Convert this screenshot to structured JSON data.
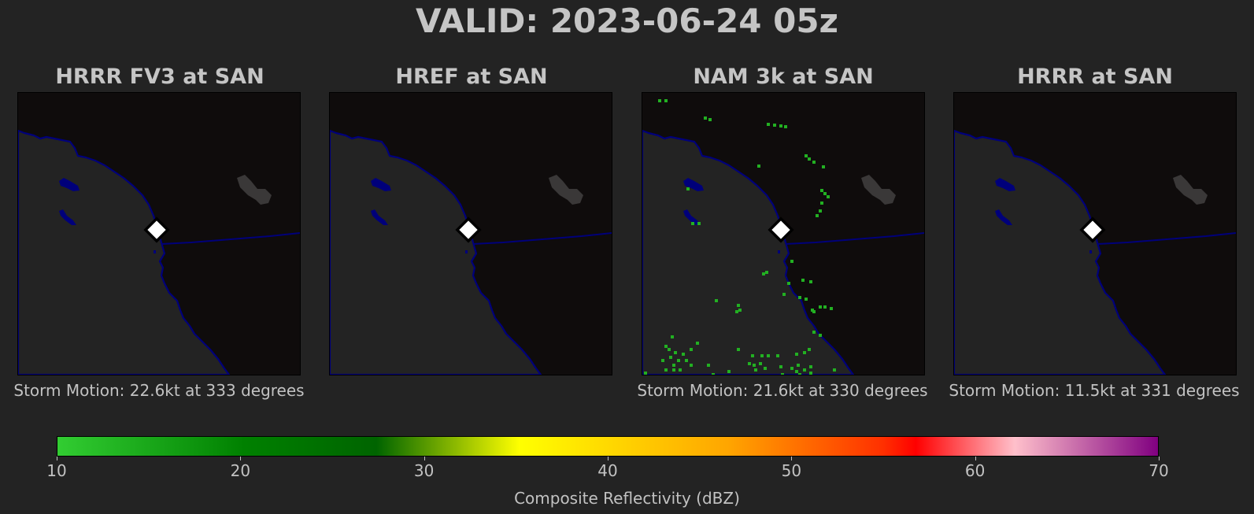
{
  "title": "VALID: 2023-06-24 05z",
  "panels": [
    {
      "title": "HRRR FV3 at SAN",
      "storm_motion": "Storm Motion: 22.6kt at 333 degrees"
    },
    {
      "title": "HREF at SAN",
      "storm_motion": ""
    },
    {
      "title": "NAM 3k at SAN",
      "storm_motion": "Storm Motion: 21.6kt at 330 degrees"
    },
    {
      "title": "HRRR at SAN",
      "storm_motion": "Storm Motion: 11.5kt at 331 degrees"
    }
  ],
  "colorbar": {
    "label": "Composite Reflectivity (dBZ)",
    "ticks": [
      "10",
      "20",
      "30",
      "40",
      "50",
      "60",
      "70"
    ],
    "range": [
      10,
      70
    ]
  },
  "colors": {
    "background": "#232323",
    "ocean": "#0f0c0c",
    "land": "#232323",
    "coastline": "#00007a",
    "reflectivity_echo": "#22b022",
    "station_marker": "#ffffff"
  }
}
